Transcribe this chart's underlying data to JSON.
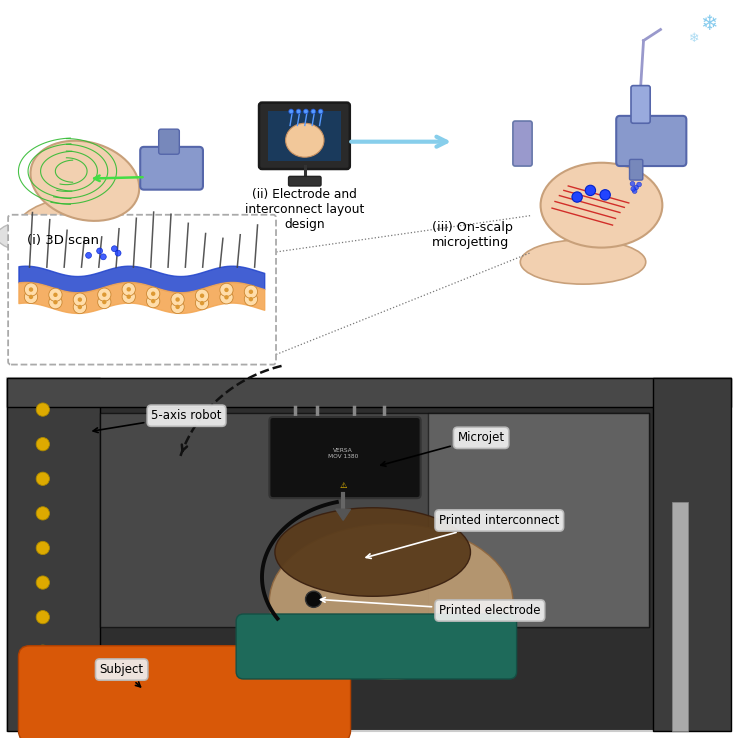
{
  "figure_width": 7.38,
  "figure_height": 7.38,
  "dpi": 100,
  "background_color": "#ffffff",
  "label_i": "(i) 3D scan",
  "label_ii": "(ii) Electrode and\ninterconnect layout\ndesign",
  "label_iii": "(iii) On-scalp\nmicrojetting",
  "annotation_bg": "#f0f0f0",
  "annotation_edge": "#cccccc"
}
